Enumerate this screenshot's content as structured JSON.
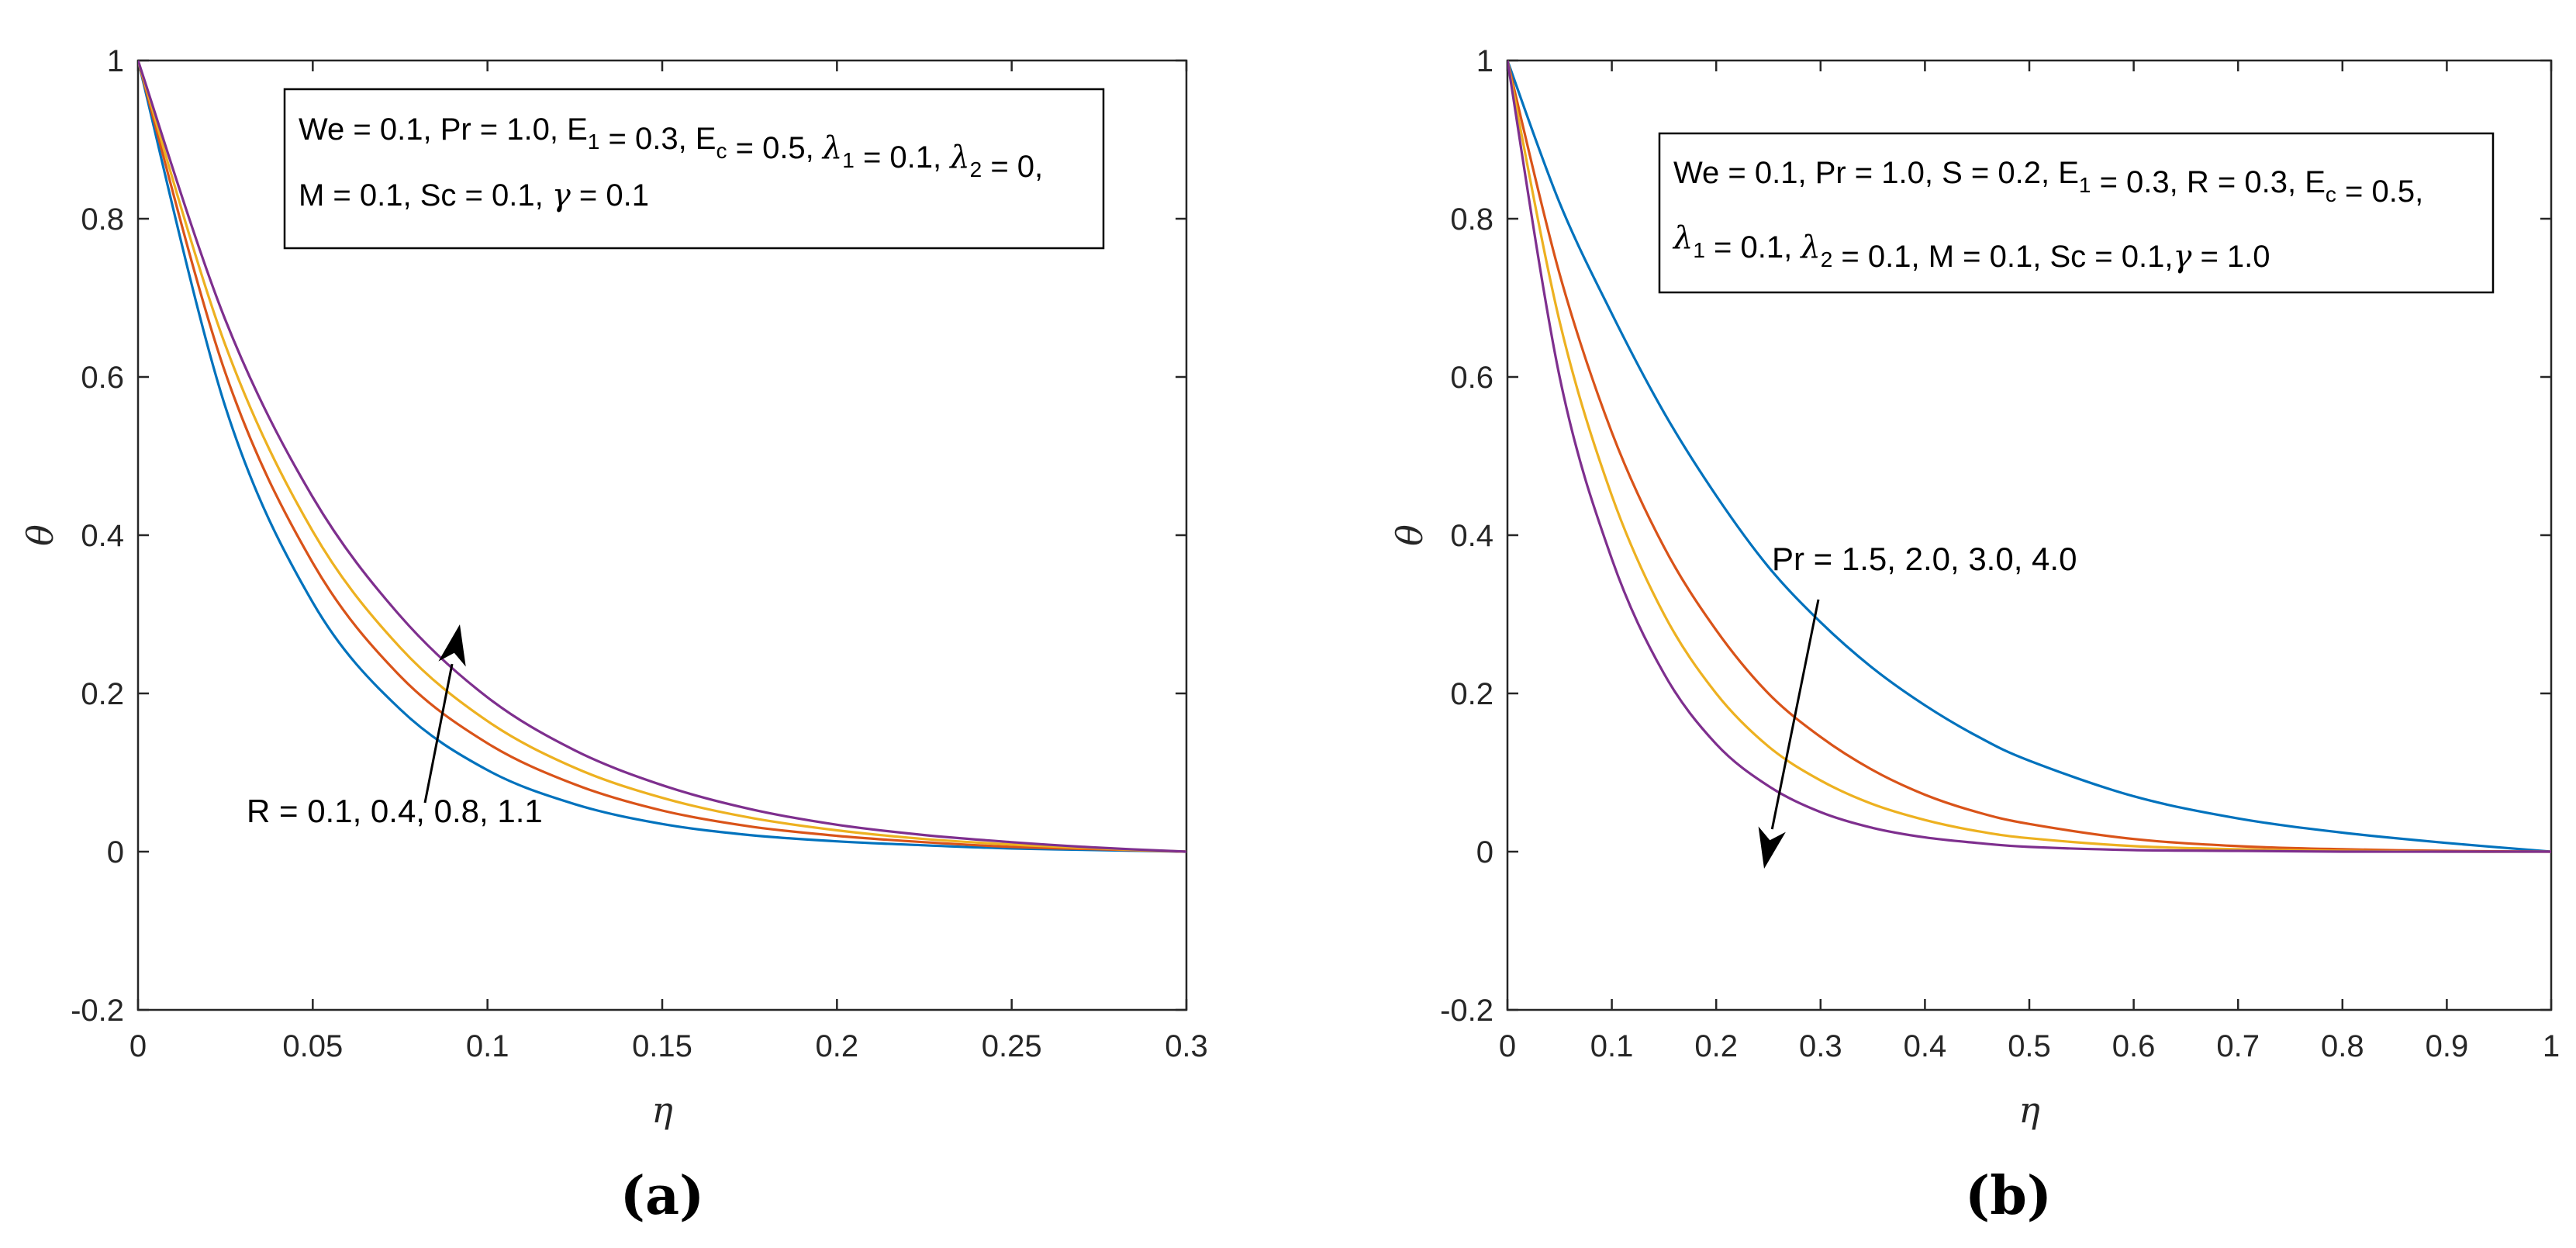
{
  "chart_data": [
    {
      "panel": "(a)",
      "type": "line",
      "xlabel": "η",
      "ylabel": "θ",
      "xlim": [
        0,
        0.3
      ],
      "ylim": [
        -0.2,
        1
      ],
      "xticks": [
        0,
        0.05,
        0.1,
        0.15,
        0.2,
        0.25,
        0.3
      ],
      "xtick_labels": [
        "0",
        "0.05",
        "0.1",
        "0.15",
        "0.2",
        "0.25",
        "0.3"
      ],
      "yticks": [
        -0.2,
        0,
        0.2,
        0.4,
        0.6,
        0.8,
        1
      ],
      "ytick_labels": [
        "-0.2",
        "0",
        "0.2",
        "0.4",
        "0.6",
        "0.8",
        "1"
      ],
      "legend_lines": [
        [
          {
            "t": "We = 0.1, Pr = 1.0, E"
          },
          {
            "t": "1",
            "sub": true
          },
          {
            "t": " = 0.3, E"
          },
          {
            "t": "c",
            "sub": true
          },
          {
            "t": " = 0.5, "
          },
          {
            "t": "λ",
            "it": true
          },
          {
            "t": "1",
            "sub": true
          },
          {
            "t": " = 0.1, "
          },
          {
            "t": "λ",
            "it": true
          },
          {
            "t": "2",
            "sub": true
          },
          {
            "t": " = 0,"
          }
        ],
        [
          {
            "t": "M = 0.1, Sc = 0.1, "
          },
          {
            "t": "γ",
            "it": true
          },
          {
            "t": " = 0.1"
          }
        ]
      ],
      "annotation": "R = 0.1, 0.4, 0.8, 1.1",
      "series": [
        {
          "color": "#0072BD",
          "x": [
            0,
            0.025,
            0.05,
            0.075,
            0.1,
            0.125,
            0.15,
            0.175,
            0.2,
            0.225,
            0.25,
            0.275,
            0.3
          ],
          "values": [
            1,
            0.562,
            0.315,
            0.18,
            0.103,
            0.06,
            0.035,
            0.021,
            0.013,
            0.008,
            0.004,
            0.002,
            0
          ]
        },
        {
          "color": "#D95319",
          "x": [
            0,
            0.025,
            0.05,
            0.075,
            0.1,
            0.125,
            0.15,
            0.175,
            0.2,
            0.225,
            0.25,
            0.275,
            0.3
          ],
          "values": [
            1,
            0.605,
            0.365,
            0.222,
            0.137,
            0.085,
            0.052,
            0.032,
            0.02,
            0.012,
            0.006,
            0.003,
            0
          ]
        },
        {
          "color": "#EDB120",
          "x": [
            0,
            0.025,
            0.05,
            0.075,
            0.1,
            0.125,
            0.15,
            0.175,
            0.2,
            0.225,
            0.25,
            0.275,
            0.3
          ],
          "values": [
            1,
            0.64,
            0.405,
            0.258,
            0.165,
            0.106,
            0.068,
            0.043,
            0.027,
            0.016,
            0.009,
            0.004,
            0
          ]
        },
        {
          "color": "#7E2F8E",
          "x": [
            0,
            0.025,
            0.05,
            0.075,
            0.1,
            0.125,
            0.15,
            0.175,
            0.2,
            0.225,
            0.25,
            0.275,
            0.3
          ],
          "values": [
            1,
            0.672,
            0.448,
            0.298,
            0.195,
            0.128,
            0.084,
            0.054,
            0.034,
            0.021,
            0.012,
            0.005,
            0
          ]
        }
      ]
    },
    {
      "panel": "(b)",
      "type": "line",
      "xlabel": "η",
      "ylabel": "θ",
      "xlim": [
        0,
        1
      ],
      "ylim": [
        -0.2,
        1
      ],
      "xticks": [
        0,
        0.1,
        0.2,
        0.3,
        0.4,
        0.5,
        0.6,
        0.7,
        0.8,
        0.9,
        1
      ],
      "xtick_labels": [
        "0",
        "0.1",
        "0.2",
        "0.3",
        "0.4",
        "0.5",
        "0.6",
        "0.7",
        "0.8",
        "0.9",
        "1"
      ],
      "yticks": [
        -0.2,
        0,
        0.2,
        0.4,
        0.6,
        0.8,
        1
      ],
      "ytick_labels": [
        "-0.2",
        "0",
        "0.2",
        "0.4",
        "0.6",
        "0.8",
        "1"
      ],
      "legend_lines": [
        [
          {
            "t": "We = 0.1, Pr = 1.0, S = 0.2, E"
          },
          {
            "t": "1",
            "sub": true
          },
          {
            "t": " = 0.3, R = 0.3, E"
          },
          {
            "t": "c",
            "sub": true
          },
          {
            "t": " = 0.5,"
          }
        ],
        [
          {
            "t": "λ",
            "it": true
          },
          {
            "t": "1",
            "sub": true
          },
          {
            "t": " = 0.1, "
          },
          {
            "t": "λ",
            "it": true
          },
          {
            "t": "2",
            "sub": true
          },
          {
            "t": " = 0.1, M = 0.1, Sc = 0.1,"
          },
          {
            "t": "γ",
            "it": true
          },
          {
            "t": " = 1.0"
          }
        ]
      ],
      "annotation": "Pr = 1.5, 2.0, 3.0, 4.0",
      "series": [
        {
          "color": "#0072BD",
          "x": [
            0,
            0.05,
            0.1,
            0.15,
            0.2,
            0.25,
            0.3,
            0.35,
            0.4,
            0.45,
            0.5,
            0.6,
            0.7,
            0.8,
            0.9,
            1.0
          ],
          "values": [
            1,
            0.82,
            0.68,
            0.555,
            0.45,
            0.36,
            0.29,
            0.232,
            0.185,
            0.146,
            0.115,
            0.07,
            0.042,
            0.024,
            0.011,
            0
          ]
        },
        {
          "color": "#D95319",
          "x": [
            0,
            0.05,
            0.1,
            0.15,
            0.2,
            0.25,
            0.3,
            0.35,
            0.4,
            0.45,
            0.5,
            0.6,
            0.7,
            0.8,
            0.9,
            1.0
          ],
          "values": [
            1,
            0.73,
            0.53,
            0.385,
            0.28,
            0.2,
            0.145,
            0.103,
            0.072,
            0.05,
            0.035,
            0.016,
            0.007,
            0.003,
            0.001,
            0
          ]
        },
        {
          "color": "#EDB120",
          "x": [
            0,
            0.05,
            0.1,
            0.15,
            0.2,
            0.25,
            0.3,
            0.35,
            0.4,
            0.45,
            0.5,
            0.6,
            0.7,
            0.8,
            0.9,
            1.0
          ],
          "values": [
            1,
            0.67,
            0.45,
            0.3,
            0.2,
            0.133,
            0.09,
            0.06,
            0.04,
            0.026,
            0.017,
            0.007,
            0.003,
            0.001,
            0,
            0
          ]
        },
        {
          "color": "#7E2F8E",
          "x": [
            0,
            0.05,
            0.1,
            0.15,
            0.2,
            0.25,
            0.3,
            0.35,
            0.4,
            0.45,
            0.5,
            0.6,
            0.7,
            0.8,
            0.9,
            1.0
          ],
          "values": [
            1,
            0.6,
            0.37,
            0.225,
            0.136,
            0.083,
            0.05,
            0.03,
            0.018,
            0.011,
            0.006,
            0.002,
            0.001,
            0,
            0,
            0
          ]
        }
      ]
    }
  ]
}
